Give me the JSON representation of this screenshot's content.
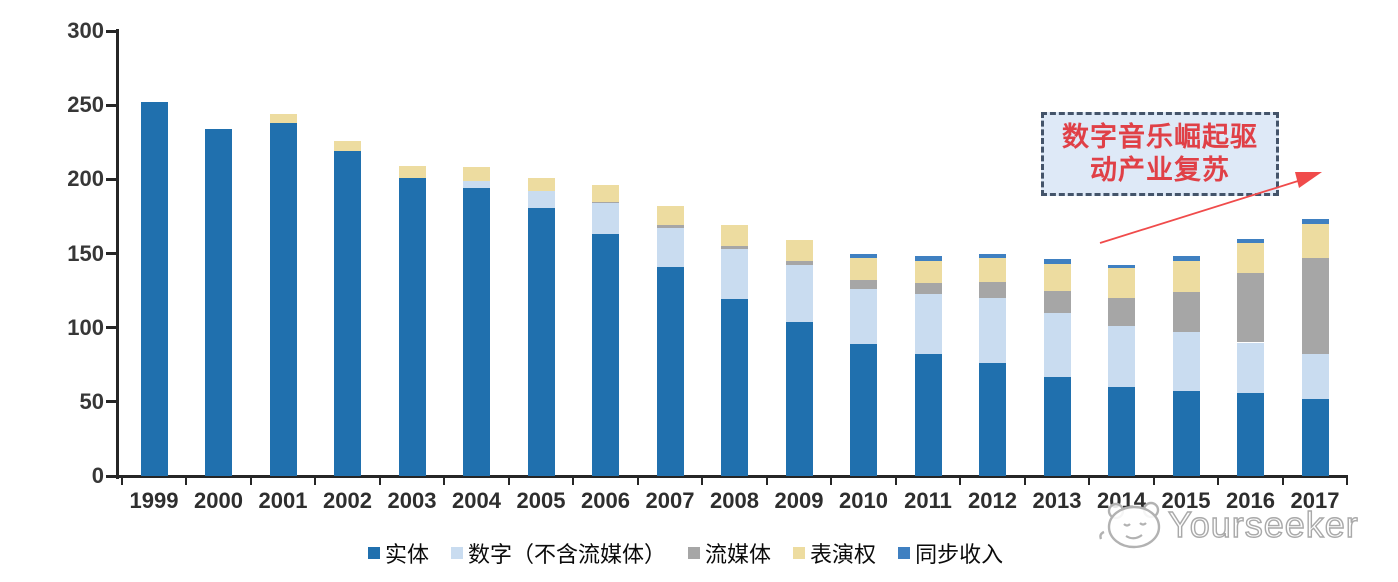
{
  "chart_data": {
    "type": "bar",
    "stacked": true,
    "categories": [
      "1999",
      "2000",
      "2001",
      "2002",
      "2003",
      "2004",
      "2005",
      "2006",
      "2007",
      "2008",
      "2009",
      "2010",
      "2011",
      "2012",
      "2013",
      "2014",
      "2015",
      "2016",
      "2017"
    ],
    "series": [
      {
        "name": "实体",
        "color": "#2070AE",
        "values": [
          252,
          234,
          238,
          219,
          201,
          194,
          181,
          163,
          141,
          119,
          104,
          89,
          82,
          76,
          67,
          60,
          57,
          56,
          52
        ]
      },
      {
        "name": "数字（不含流媒体）",
        "color": "#C9DCF0",
        "values": [
          0,
          0,
          0,
          0,
          0,
          5,
          11,
          21,
          26,
          34,
          38,
          37,
          41,
          44,
          43,
          41,
          40,
          34,
          30
        ]
      },
      {
        "name": "流媒体",
        "color": "#A6A6A6",
        "values": [
          0,
          0,
          0,
          0,
          0,
          0,
          0,
          1,
          2,
          2,
          3,
          6,
          7,
          11,
          15,
          19,
          27,
          47,
          65
        ]
      },
      {
        "name": "表演权",
        "color": "#EDDCA0",
        "values": [
          0,
          0,
          6,
          7,
          8,
          9,
          9,
          11,
          13,
          14,
          14,
          15,
          15,
          16,
          18,
          20,
          21,
          20,
          23
        ]
      },
      {
        "name": "同步收入",
        "color": "#3F80C1",
        "values": [
          0,
          0,
          0,
          0,
          0,
          0,
          0,
          0,
          0,
          0,
          0,
          3,
          3,
          3,
          3,
          2,
          3,
          3,
          3
        ]
      }
    ],
    "ylim": [
      0,
      300
    ],
    "yticks": [
      0,
      50,
      100,
      150,
      200,
      250,
      300
    ],
    "grid": false,
    "legend_position": "bottom",
    "title": "",
    "xlabel": "",
    "ylabel": ""
  },
  "annotation": {
    "line1": "数字音乐崛起驱",
    "line2": "动产业复苏",
    "text_color": "#E04047",
    "box_fill": "#DEE9F7",
    "box_border": "#44546A",
    "arrow_color": "#F04B4B"
  },
  "watermark": {
    "text": "Yourseeker"
  }
}
